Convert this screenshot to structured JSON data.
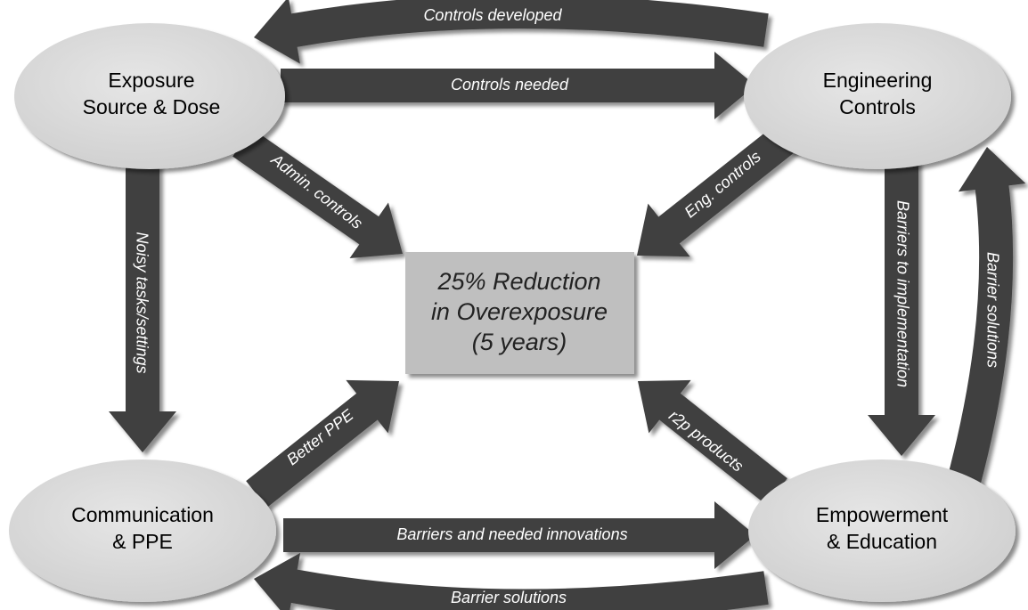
{
  "nodes": [
    {
      "lines": [
        "Exposure",
        "Source & Dose"
      ]
    },
    {
      "lines": [
        "Engineering",
        "Controls"
      ]
    },
    {
      "lines": [
        "Communication",
        "& PPE"
      ]
    },
    {
      "lines": [
        "Empowerment",
        "& Education"
      ]
    }
  ],
  "center": {
    "lines": [
      "25% Reduction",
      "in Overexposure",
      "(5 years)"
    ]
  },
  "edges": [
    {
      "label": "Controls developed"
    },
    {
      "label": "Controls needed"
    },
    {
      "label": "Admin. controls"
    },
    {
      "label": "Eng. controls"
    },
    {
      "label": "Noisy tasks/settings"
    },
    {
      "label": "Barriers to implementation"
    },
    {
      "label": "Barrier solutions"
    },
    {
      "label": "Better PPE"
    },
    {
      "label": "r2p products"
    },
    {
      "label": "Barriers and needed innovations"
    },
    {
      "label": "Barrier solutions"
    }
  ]
}
